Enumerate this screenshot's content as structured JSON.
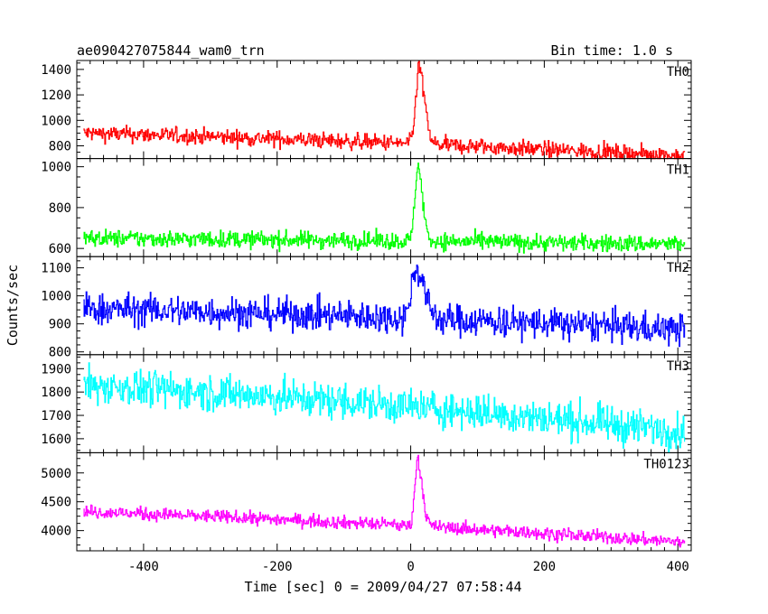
{
  "header": {
    "title": "ae090427075844_wam0_trn",
    "bin_time": "Bin time: 1.0 s"
  },
  "axes": {
    "ylabel": "Counts/sec",
    "xlabel": "Time [sec] 0 = 2009/04/27 07:58:44"
  },
  "chart_data": {
    "type": "line",
    "title": "ae090427075844_wam0_trn",
    "xlabel": "Time [sec] 0 = 2009/04/27 07:58:44",
    "ylabel": "Counts/sec",
    "xlim": [
      -500,
      420
    ],
    "x_ticks": [
      -400,
      -200,
      0,
      200,
      400
    ],
    "bin_time_s": 1.0,
    "series": [
      {
        "name": "TH0",
        "color": "#ff0000",
        "ylim": [
          700,
          1470
        ],
        "yticks": [
          800,
          1000,
          1200,
          1400
        ],
        "baseline_start": 900,
        "baseline_end": 720,
        "noise": 45,
        "peak": 1460,
        "peak_time": 12,
        "peak_width": 8
      },
      {
        "name": "TH1",
        "color": "#00ff00",
        "ylim": [
          560,
          1040
        ],
        "yticks": [
          600,
          800,
          1000
        ],
        "baseline_start": 650,
        "baseline_end": 620,
        "noise": 30,
        "peak": 1030,
        "peak_time": 10,
        "peak_width": 7
      },
      {
        "name": "TH2",
        "color": "#0000ff",
        "ylim": [
          790,
          1140
        ],
        "yticks": [
          800,
          900,
          1000,
          1100
        ],
        "baseline_start": 955,
        "baseline_end": 880,
        "noise": 40,
        "peak": 1110,
        "peak_time": 8,
        "peak_width": 12
      },
      {
        "name": "TH3",
        "color": "#00ffff",
        "ylim": [
          1540,
          1960
        ],
        "yticks": [
          1600,
          1700,
          1800,
          1900
        ],
        "baseline_start": 1830,
        "baseline_end": 1630,
        "noise": 55,
        "peak": 0,
        "peak_time": 0,
        "peak_width": 1
      },
      {
        "name": "TH0123",
        "color": "#ff00ff",
        "ylim": [
          3650,
          5350
        ],
        "yticks": [
          4000,
          4500,
          5000
        ],
        "baseline_start": 4330,
        "baseline_end": 3800,
        "noise": 80,
        "peak": 5300,
        "peak_time": 10,
        "peak_width": 7
      }
    ]
  }
}
